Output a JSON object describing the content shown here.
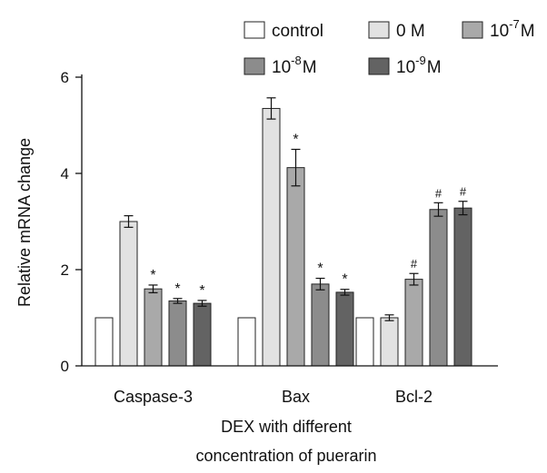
{
  "chart_data": {
    "type": "bar",
    "title": "",
    "ylabel": "Relative mRNA change",
    "xlabel_line1": "DEX with different",
    "xlabel_line2": "concentration of puerarin",
    "ylim": [
      0,
      6
    ],
    "yticks": [
      "0",
      "2",
      "4",
      "6"
    ],
    "grid": false,
    "legend_position": "top",
    "categories": [
      "Caspase-3",
      "Bax",
      "Bcl-2"
    ],
    "series": [
      {
        "name": "control",
        "legend_main": "control",
        "legend_sup": "",
        "legend_unit": "",
        "color": "#ffffff",
        "values": [
          1.0,
          1.0,
          1.0
        ],
        "errors": [
          0,
          0,
          0
        ],
        "marks": [
          "",
          "",
          ""
        ]
      },
      {
        "name": "0 M",
        "legend_main": "0 M",
        "legend_sup": "",
        "legend_unit": "",
        "color": "#e2e2e2",
        "values": [
          3.0,
          5.35,
          1.0
        ],
        "errors": [
          0.12,
          0.22,
          0.06
        ],
        "marks": [
          "",
          "",
          ""
        ]
      },
      {
        "name": "10-7 M",
        "legend_main": "10",
        "legend_sup": "-7",
        "legend_unit": "M",
        "color": "#a9a9a9",
        "values": [
          1.6,
          4.12,
          1.8
        ],
        "errors": [
          0.08,
          0.38,
          0.12
        ],
        "marks": [
          "*",
          "*",
          "#"
        ]
      },
      {
        "name": "10-8 M",
        "legend_main": "10",
        "legend_sup": "-8",
        "legend_unit": "M",
        "color": "#8c8c8c",
        "values": [
          1.35,
          1.7,
          3.25
        ],
        "errors": [
          0.05,
          0.12,
          0.14
        ],
        "marks": [
          "*",
          "*",
          "#"
        ]
      },
      {
        "name": "10-9 M",
        "legend_main": "10",
        "legend_sup": "-9",
        "legend_unit": "M",
        "color": "#636363",
        "values": [
          1.3,
          1.53,
          3.28
        ],
        "errors": [
          0.06,
          0.06,
          0.14
        ],
        "marks": [
          "*",
          "*",
          "#"
        ]
      }
    ]
  }
}
